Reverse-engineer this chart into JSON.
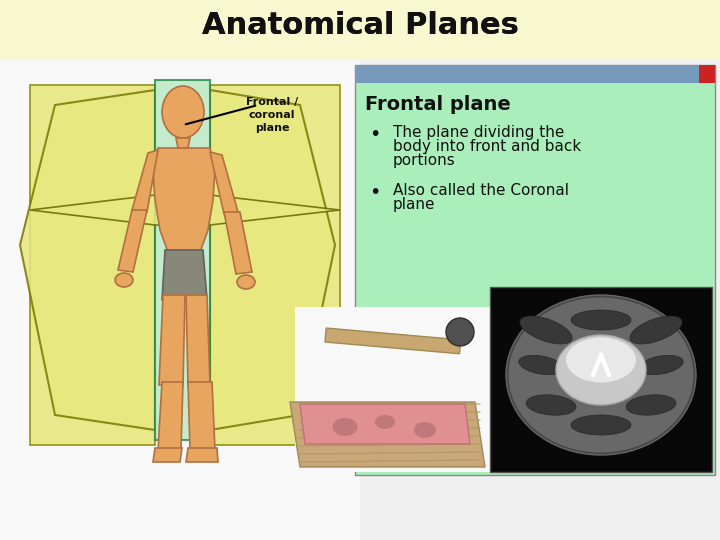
{
  "title": "Anatomical Planes",
  "title_fontsize": 22,
  "title_fontweight": "bold",
  "title_color": "#111111",
  "bg_color": "#f8f8d0",
  "panel_bg_color": "#aaeebb",
  "panel_border_color": "#888888",
  "panel_title": "Frontal plane",
  "panel_title_fontsize": 14,
  "panel_title_fontweight": "bold",
  "bullet1_line1": "The plane dividing the",
  "bullet1_line2": "body into front and back",
  "bullet1_line3": "portions",
  "bullet2_line1": "Also called the Coronal",
  "bullet2_line2": "plane",
  "bullet_fontsize": 11,
  "label_text": "Frontal /\ncoronal\nplane",
  "label_fontsize": 8,
  "label_fontweight": "bold",
  "titlebar_color": "#7799bb",
  "body_color": "#e8a560",
  "body_outline": "#b07040",
  "shorts_color": "#888878",
  "plane_green": "#b8e8c0",
  "plane_yellow": "#e8e880",
  "plane_yellow_outer": "#d8d870",
  "bg_white": "#ffffff"
}
